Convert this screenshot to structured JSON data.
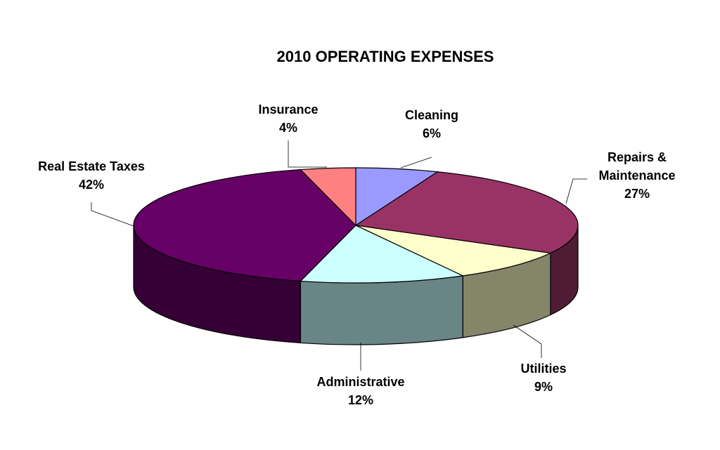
{
  "chart_data": {
    "type": "pie",
    "title": "2010 OPERATING EXPENSES",
    "style": "3d-exploded-perspective",
    "slices": [
      {
        "name": "Cleaning",
        "pct_label": "6%",
        "value": 6,
        "color": "#9999FF"
      },
      {
        "name": "Repairs &",
        "name2": "Maintenance",
        "pct_label": "27%",
        "value": 27,
        "color": "#993366"
      },
      {
        "name": "Utilities",
        "pct_label": "9%",
        "value": 9,
        "color": "#FFFFCC"
      },
      {
        "name": "Administrative",
        "pct_label": "12%",
        "value": 12,
        "color": "#CCFFFF"
      },
      {
        "name": "Real Estate Taxes",
        "pct_label": "42%",
        "value": 42,
        "color": "#660066"
      },
      {
        "name": "Insurance",
        "pct_label": "4%",
        "value": 4,
        "color": "#FF8080"
      }
    ]
  }
}
